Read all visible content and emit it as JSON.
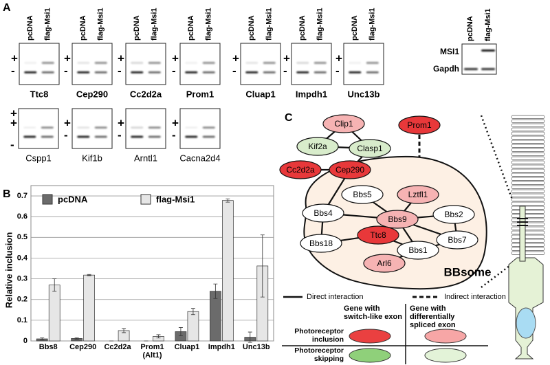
{
  "panel_a": {
    "label": "A",
    "lanes": [
      "pcDNA",
      "flag-Msi1"
    ],
    "gels_row1": [
      {
        "gene": "Ttc8",
        "markers": [
          "+",
          "-"
        ]
      },
      {
        "gene": "Cep290",
        "markers": [
          "+",
          "-"
        ]
      },
      {
        "gene": "Cc2d2a",
        "markers": [
          "+",
          "-"
        ]
      },
      {
        "gene": "Prom1",
        "markers": [
          "+",
          "-"
        ]
      },
      {
        "gene": "Cluap1",
        "markers": [
          "+",
          "-"
        ]
      },
      {
        "gene": "Impdh1",
        "markers": [
          "+",
          "-"
        ]
      },
      {
        "gene": "Unc13b",
        "markers": [
          "+",
          "-"
        ]
      }
    ],
    "gels_row2": [
      {
        "gene": "Cspp1",
        "markers": [
          "+",
          "+",
          "-"
        ]
      },
      {
        "gene": "Kif1b",
        "markers": [
          "+",
          "-"
        ]
      },
      {
        "gene": "Arntl1",
        "markers": [
          "+",
          "-"
        ]
      },
      {
        "gene": "Cacna2d4",
        "markers": [
          "+",
          "-"
        ]
      }
    ],
    "western": {
      "rows": [
        "MSI1",
        "Gapdh"
      ]
    }
  },
  "chart_data": {
    "type": "bar",
    "panel_label": "B",
    "ylabel": "Relative inclusion",
    "categories": [
      "Bbs8",
      "Cep290",
      "Cc2d2a",
      "Prom1 (Alt1)",
      "Cluap1",
      "Impdh1",
      "Unc13b"
    ],
    "series": [
      {
        "name": "pcDNA",
        "color": "#6b6b6b",
        "values": [
          0.01,
          0.012,
          0,
          0,
          0.045,
          0.24,
          0.018
        ],
        "errors": [
          0.005,
          0.003,
          0,
          0,
          0.02,
          0.035,
          0.025
        ]
      },
      {
        "name": "flag-Msi1",
        "color": "#e6e6e6",
        "values": [
          0.27,
          0.318,
          0.05,
          0.022,
          0.142,
          0.678,
          0.362
        ],
        "errors": [
          0.03,
          0.003,
          0.01,
          0.008,
          0.015,
          0.008,
          0.15
        ]
      }
    ],
    "ylim": [
      0,
      0.75
    ],
    "yticks": [
      0,
      0.1,
      0.2,
      0.3,
      0.4,
      0.5,
      0.6,
      0.7
    ],
    "grid": true
  },
  "panel_c": {
    "label": "C",
    "complex_label": "BBsome",
    "nodes": [
      {
        "label": "Clip1",
        "color": "#f6b3b3"
      },
      {
        "label": "Prom1",
        "color": "#e8383a"
      },
      {
        "label": "Kif2a",
        "color": "#d8eccb"
      },
      {
        "label": "Clasp1",
        "color": "#d8eccb"
      },
      {
        "label": "Cc2d2a",
        "color": "#e8383a"
      },
      {
        "label": "Cep290",
        "color": "#e8383a"
      },
      {
        "label": "Bbs5",
        "color": "#ffffff"
      },
      {
        "label": "Lztfl1",
        "color": "#f6b3b3"
      },
      {
        "label": "Bbs4",
        "color": "#ffffff"
      },
      {
        "label": "Bbs9",
        "color": "#f6b3b3"
      },
      {
        "label": "Bbs2",
        "color": "#ffffff"
      },
      {
        "label": "Bbs18",
        "color": "#ffffff"
      },
      {
        "label": "Ttc8",
        "color": "#e8383a"
      },
      {
        "label": "Bbs1",
        "color": "#ffffff"
      },
      {
        "label": "Bbs7",
        "color": "#ffffff"
      },
      {
        "label": "Arl6",
        "color": "#f6b3b3"
      }
    ],
    "legend": {
      "direct": "Direct interaction",
      "indirect": "Indirect interaction"
    },
    "table": {
      "columns": [
        "Gene with switch-like exon",
        "Gene with differentially spliced exon"
      ],
      "rows": [
        {
          "label": "Photoreceptor inclusion",
          "colors": [
            "#ea4040",
            "#f7a6a6"
          ]
        },
        {
          "label": "Photoreceptor skipping",
          "colors": [
            "#8fd07a",
            "#e3f3d8"
          ]
        }
      ]
    }
  }
}
